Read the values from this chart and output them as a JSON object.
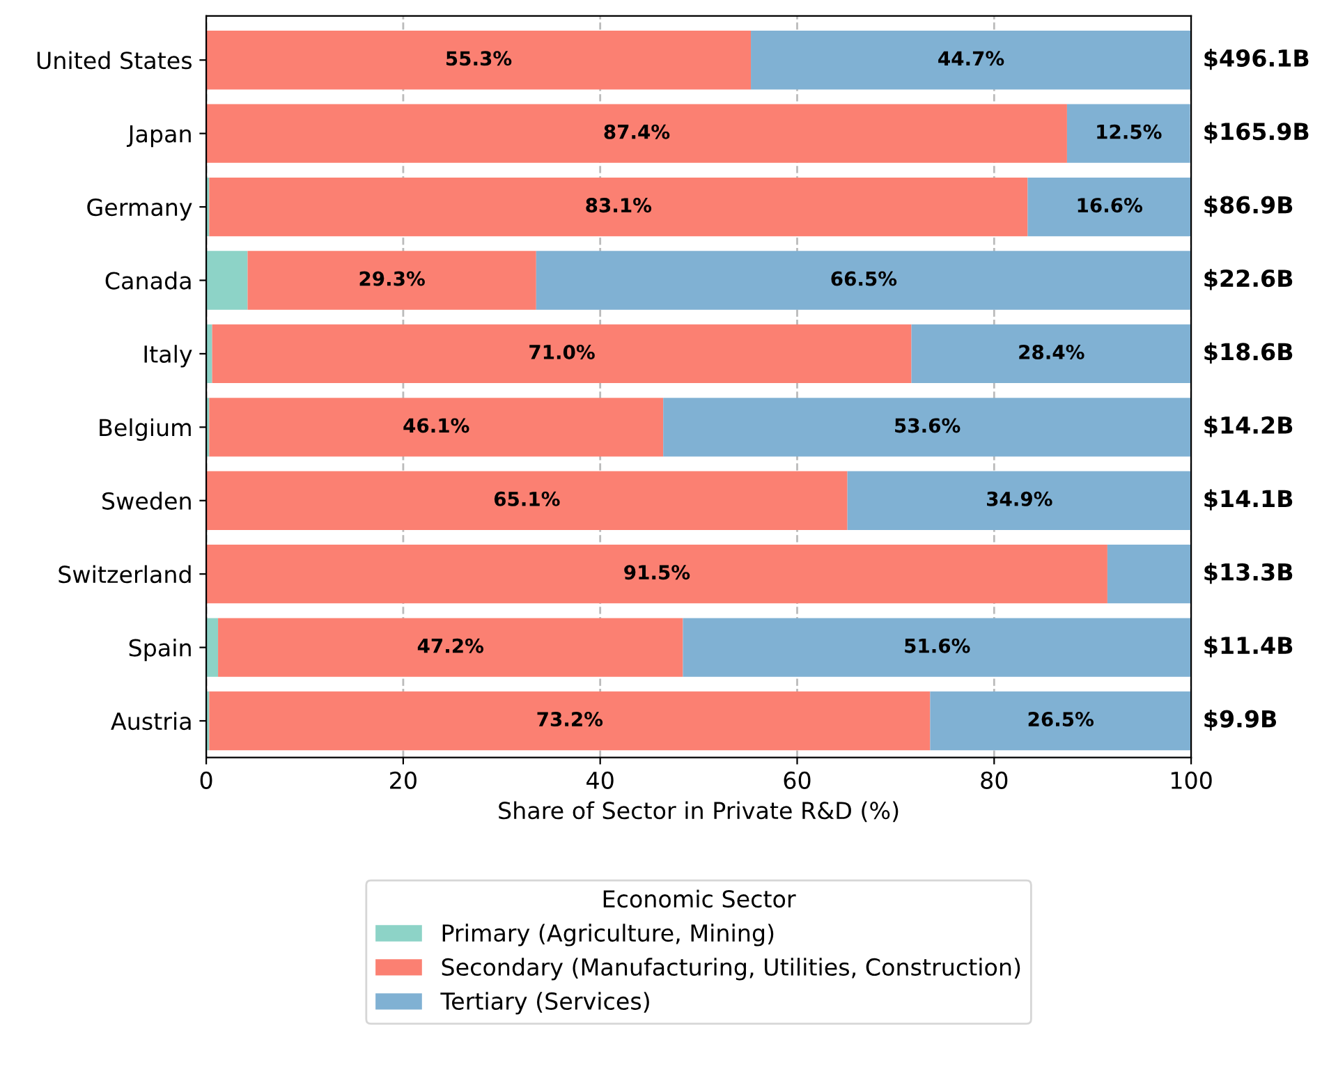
{
  "chart_data": {
    "type": "bar",
    "orientation": "horizontal",
    "stacked": true,
    "categories": [
      "United States",
      "Japan",
      "Germany",
      "Canada",
      "Italy",
      "Belgium",
      "Sweden",
      "Switzerland",
      "Spain",
      "Austria"
    ],
    "series": [
      {
        "name": "Primary (Agriculture, Mining)",
        "color": "#8dd3c7",
        "values": [
          0,
          null,
          0.3,
          4.2,
          0.6,
          0.3,
          0,
          0,
          1.2,
          0.3
        ],
        "value_labels": [
          null,
          null,
          null,
          null,
          null,
          null,
          null,
          null,
          null,
          null
        ]
      },
      {
        "name": "Secondary (Manufacturing, Utilities, Construction)",
        "color": "#fb8072",
        "values": [
          55.3,
          87.4,
          83.1,
          29.3,
          71.0,
          46.1,
          65.1,
          91.5,
          47.2,
          73.2
        ],
        "value_labels": [
          "55.3%",
          "87.4%",
          "83.1%",
          "29.3%",
          "71.0%",
          "46.1%",
          "65.1%",
          "91.5%",
          "47.2%",
          "73.2%"
        ]
      },
      {
        "name": "Tertiary (Services)",
        "color": "#80b1d3",
        "values": [
          44.7,
          12.5,
          16.6,
          66.5,
          28.4,
          53.6,
          34.9,
          8.5,
          51.6,
          26.5
        ],
        "value_labels": [
          "44.7%",
          "12.5%",
          "16.6%",
          "66.5%",
          "28.4%",
          "53.6%",
          "34.9%",
          null,
          "51.6%",
          "26.5%"
        ]
      }
    ],
    "annotations": [
      "$496.1B",
      "$165.9B",
      "$86.9B",
      "$22.6B",
      "$18.6B",
      "$14.2B",
      "$14.1B",
      "$13.3B",
      "$11.4B",
      "$9.9B"
    ],
    "xlabel": "Share of Sector in Private R&D (%)",
    "xlim": [
      0,
      100
    ],
    "xticks": [
      0,
      20,
      40,
      60,
      80,
      100
    ],
    "grid": "x",
    "legend": "bottom",
    "legend_title": "Economic Sector"
  }
}
